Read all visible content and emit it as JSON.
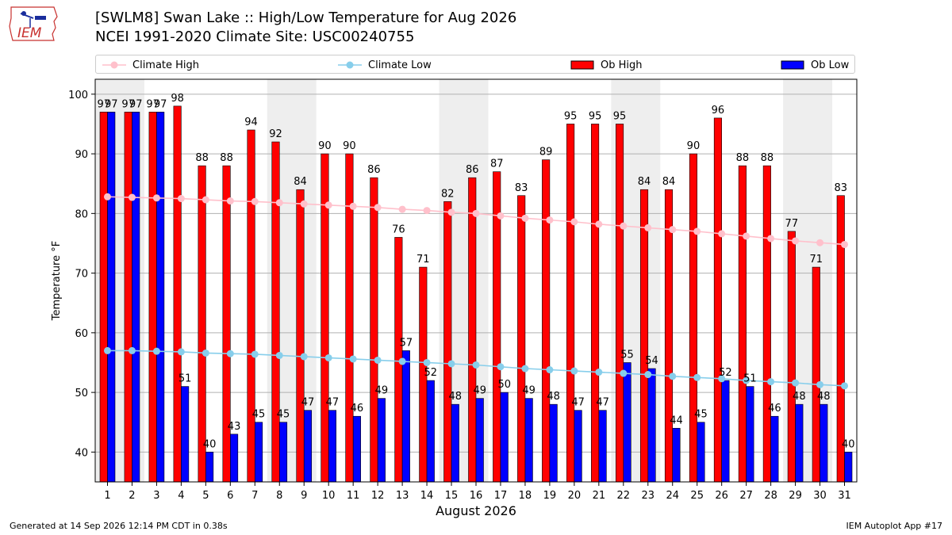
{
  "header": {
    "logo_text": "IEM",
    "title_line1": "[SWLM8] Swan Lake :: High/Low Temperature for Aug 2026",
    "title_line2": "NCEI 1991-2020 Climate Site: USC00240755"
  },
  "footer": {
    "generated": "Generated at 14 Sep 2026 12:14 PM CDT in 0.38s",
    "app": "IEM Autoplot App #17"
  },
  "colors": {
    "ob_high": "#ff0000",
    "ob_low": "#0000ff",
    "climate_high": "#ffc0cb",
    "climate_low": "#87ceeb",
    "weekend_shade": "#eeeeee",
    "grid": "#b0b0b0"
  },
  "chart_data": {
    "type": "bar",
    "title": "[SWLM8] Swan Lake :: High/Low Temperature for Aug 2026",
    "subtitle": "NCEI 1991-2020 Climate Site: USC00240755",
    "xlabel": "August 2026",
    "ylabel": "Temperature °F",
    "ylim": [
      35,
      102.5
    ],
    "yticks": [
      40,
      50,
      60,
      70,
      80,
      90,
      100
    ],
    "grid": true,
    "legend_position": "top",
    "categories": [
      "1",
      "2",
      "3",
      "4",
      "5",
      "6",
      "7",
      "8",
      "9",
      "10",
      "11",
      "12",
      "13",
      "14",
      "15",
      "16",
      "17",
      "18",
      "19",
      "20",
      "21",
      "22",
      "23",
      "24",
      "25",
      "26",
      "27",
      "28",
      "29",
      "30",
      "31"
    ],
    "shaded_weekend_days": [
      [
        1,
        2
      ],
      [
        8,
        9
      ],
      [
        15,
        16
      ],
      [
        22,
        23
      ],
      [
        29,
        30
      ]
    ],
    "series": [
      {
        "name": "Climate High",
        "type": "line",
        "values": [
          82.8,
          82.7,
          82.6,
          82.5,
          82.3,
          82.1,
          82.0,
          81.8,
          81.6,
          81.4,
          81.2,
          81.0,
          80.7,
          80.5,
          80.2,
          80.0,
          79.6,
          79.2,
          78.9,
          78.6,
          78.2,
          77.9,
          77.6,
          77.3,
          77.0,
          76.6,
          76.2,
          75.8,
          75.4,
          75.1,
          74.8
        ]
      },
      {
        "name": "Climate Low",
        "type": "line",
        "values": [
          57.0,
          57.0,
          56.9,
          56.8,
          56.6,
          56.5,
          56.4,
          56.2,
          56.0,
          55.8,
          55.6,
          55.4,
          55.2,
          55.0,
          54.8,
          54.6,
          54.3,
          54.0,
          53.8,
          53.6,
          53.4,
          53.2,
          53.0,
          52.7,
          52.5,
          52.3,
          52.0,
          51.8,
          51.6,
          51.3,
          51.1
        ]
      },
      {
        "name": "Ob High",
        "type": "bar",
        "values": [
          97,
          97,
          97,
          98,
          88,
          88,
          94,
          92,
          84,
          90,
          90,
          86,
          76,
          71,
          82,
          86,
          87,
          83,
          89,
          95,
          95,
          95,
          84,
          84,
          90,
          96,
          88,
          88,
          77,
          71,
          83
        ]
      },
      {
        "name": "Ob Low",
        "type": "bar",
        "values": [
          97,
          97,
          97,
          51,
          40,
          43,
          45,
          45,
          47,
          47,
          46,
          49,
          57,
          52,
          48,
          49,
          50,
          49,
          48,
          47,
          47,
          55,
          54,
          44,
          45,
          52,
          51,
          46,
          48,
          48,
          40
        ]
      }
    ]
  }
}
